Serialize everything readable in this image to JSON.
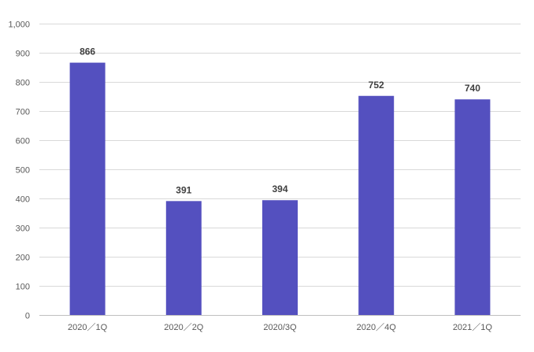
{
  "chart_data": {
    "type": "bar",
    "categories": [
      "2020／1Q",
      "2020／2Q",
      "2020/3Q",
      "2020／4Q",
      "2021／1Q"
    ],
    "values": [
      866,
      391,
      394,
      752,
      740
    ],
    "data_labels": [
      "866",
      "391",
      "394",
      "752",
      "740"
    ],
    "y_ticks": [
      0,
      100,
      200,
      300,
      400,
      500,
      600,
      700,
      800,
      900,
      1000
    ],
    "y_tick_labels": [
      "0",
      "100",
      "200",
      "300",
      "400",
      "500",
      "600",
      "700",
      "800",
      "900",
      "1,000"
    ],
    "ylim": [
      0,
      1000
    ],
    "title": "",
    "xlabel": "",
    "ylabel": "",
    "grid": true,
    "legend": "none",
    "bar_color": "#5450bf"
  }
}
